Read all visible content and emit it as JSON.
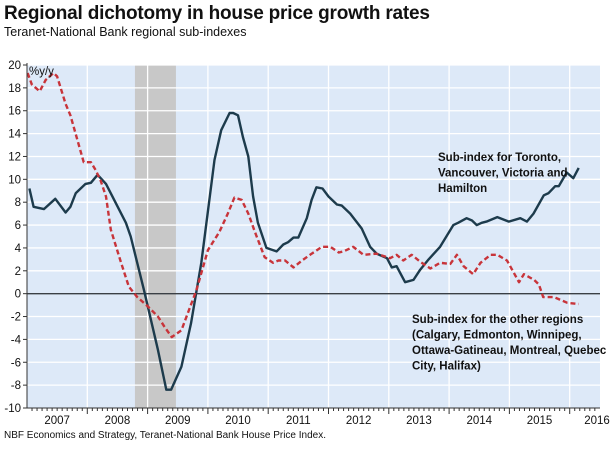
{
  "chart_data": {
    "type": "line",
    "title": "Regional dichotomy in house price growth rates",
    "subtitle": "Teranet-National Bank regional sub-indexes",
    "ylabel": "%y/y",
    "xlabel": "",
    "source": "NBF Economics and Strategy, Teranet-National Bank House Price Index.",
    "ylim": [
      -10,
      20
    ],
    "yticks": [
      20,
      18,
      16,
      14,
      12,
      10,
      8,
      6,
      4,
      2,
      0,
      -2,
      -4,
      -6,
      -8,
      -10
    ],
    "xlim": [
      2007.0,
      2016.5
    ],
    "xticks": [
      "2007",
      "2008",
      "2009",
      "2010",
      "2011",
      "2012",
      "2013",
      "2014",
      "2015",
      "2016"
    ],
    "grid": true,
    "background_color": "#dde9f8",
    "recession_shading": {
      "start": 2008.79,
      "end": 2009.47,
      "color": "#c8c8c8"
    },
    "series": [
      {
        "name": "Sub-index for Toronto, Vancouver, Victoria and Hamilton",
        "label_lines": [
          "Sub-index for Toronto,",
          "Vancouver, Victoria and",
          "Hamilton"
        ],
        "color": "#1d3b4c",
        "style": "solid",
        "points": [
          [
            2007.04,
            9.2
          ],
          [
            2007.11,
            7.6
          ],
          [
            2007.28,
            7.4
          ],
          [
            2007.47,
            8.3
          ],
          [
            2007.64,
            7.1
          ],
          [
            2007.72,
            7.6
          ],
          [
            2007.81,
            8.8
          ],
          [
            2007.97,
            9.6
          ],
          [
            2008.06,
            9.7
          ],
          [
            2008.17,
            10.4
          ],
          [
            2008.31,
            9.6
          ],
          [
            2008.64,
            6.2
          ],
          [
            2008.72,
            5.0
          ],
          [
            2008.94,
            0.3
          ],
          [
            2009.17,
            -4.9
          ],
          [
            2009.31,
            -8.4
          ],
          [
            2009.39,
            -8.4
          ],
          [
            2009.56,
            -6.4
          ],
          [
            2009.72,
            -2.6
          ],
          [
            2009.89,
            2.7
          ],
          [
            2010.11,
            11.7
          ],
          [
            2010.22,
            14.3
          ],
          [
            2010.36,
            15.8
          ],
          [
            2010.42,
            15.8
          ],
          [
            2010.5,
            15.6
          ],
          [
            2010.58,
            13.7
          ],
          [
            2010.67,
            12.0
          ],
          [
            2010.75,
            8.5
          ],
          [
            2010.83,
            6.2
          ],
          [
            2010.97,
            4.0
          ],
          [
            2011.14,
            3.7
          ],
          [
            2011.25,
            4.3
          ],
          [
            2011.33,
            4.5
          ],
          [
            2011.42,
            4.9
          ],
          [
            2011.5,
            4.9
          ],
          [
            2011.64,
            6.6
          ],
          [
            2011.72,
            8.2
          ],
          [
            2011.8,
            9.3
          ],
          [
            2011.9,
            9.2
          ],
          [
            2012.0,
            8.5
          ],
          [
            2012.14,
            7.8
          ],
          [
            2012.22,
            7.7
          ],
          [
            2012.36,
            7.0
          ],
          [
            2012.55,
            5.7
          ],
          [
            2012.69,
            4.1
          ],
          [
            2012.8,
            3.5
          ],
          [
            2012.97,
            3.1
          ],
          [
            2013.05,
            2.3
          ],
          [
            2013.13,
            2.4
          ],
          [
            2013.27,
            1.0
          ],
          [
            2013.41,
            1.2
          ],
          [
            2013.52,
            2.1
          ],
          [
            2013.66,
            3.0
          ],
          [
            2013.85,
            4.1
          ],
          [
            2014.07,
            6.0
          ],
          [
            2014.15,
            6.2
          ],
          [
            2014.29,
            6.6
          ],
          [
            2014.38,
            6.4
          ],
          [
            2014.46,
            6.0
          ],
          [
            2014.54,
            6.2
          ],
          [
            2014.62,
            6.3
          ],
          [
            2014.8,
            6.7
          ],
          [
            2014.99,
            6.3
          ],
          [
            2015.18,
            6.6
          ],
          [
            2015.29,
            6.3
          ],
          [
            2015.4,
            7.0
          ],
          [
            2015.57,
            8.6
          ],
          [
            2015.65,
            8.8
          ],
          [
            2015.76,
            9.4
          ],
          [
            2015.82,
            9.4
          ],
          [
            2015.95,
            10.6
          ],
          [
            2016.06,
            10.1
          ],
          [
            2016.15,
            11.0
          ]
        ]
      },
      {
        "name": "Sub-index for the other regions (Calgary, Edmonton, Winnipeg, Ottawa-Gatineau, Montreal, Quebec City, Halifax)",
        "label_lines": [
          "Sub-index for the other regions",
          "(Calgary, Edmonton, Winnipeg,",
          "Ottawa-Gatineau, Montreal, Quebec",
          "City, Halifax)"
        ],
        "color": "#c8343a",
        "style": "dashed",
        "points": [
          [
            2007.01,
            19.3
          ],
          [
            2007.08,
            18.3
          ],
          [
            2007.21,
            17.7
          ],
          [
            2007.31,
            18.7
          ],
          [
            2007.44,
            19.3
          ],
          [
            2007.5,
            19.0
          ],
          [
            2007.64,
            16.6
          ],
          [
            2007.72,
            15.6
          ],
          [
            2007.94,
            11.5
          ],
          [
            2008.06,
            11.5
          ],
          [
            2008.14,
            10.8
          ],
          [
            2008.22,
            9.9
          ],
          [
            2008.31,
            8.5
          ],
          [
            2008.39,
            5.6
          ],
          [
            2008.56,
            2.7
          ],
          [
            2008.69,
            0.6
          ],
          [
            2008.83,
            -0.3
          ],
          [
            2009.0,
            -1.1
          ],
          [
            2009.17,
            -2.0
          ],
          [
            2009.28,
            -2.9
          ],
          [
            2009.4,
            -3.8
          ],
          [
            2009.56,
            -3.2
          ],
          [
            2009.81,
            0.3
          ],
          [
            2010.0,
            3.8
          ],
          [
            2010.19,
            5.4
          ],
          [
            2010.33,
            7.0
          ],
          [
            2010.44,
            8.4
          ],
          [
            2010.56,
            8.2
          ],
          [
            2010.67,
            7.0
          ],
          [
            2010.78,
            5.4
          ],
          [
            2010.94,
            3.2
          ],
          [
            2011.08,
            2.7
          ],
          [
            2011.17,
            2.9
          ],
          [
            2011.28,
            2.9
          ],
          [
            2011.42,
            2.3
          ],
          [
            2011.56,
            2.9
          ],
          [
            2011.72,
            3.5
          ],
          [
            2011.78,
            3.7
          ],
          [
            2011.89,
            4.1
          ],
          [
            2012.03,
            4.1
          ],
          [
            2012.17,
            3.6
          ],
          [
            2012.25,
            3.7
          ],
          [
            2012.41,
            4.1
          ],
          [
            2012.58,
            3.4
          ],
          [
            2012.8,
            3.5
          ],
          [
            2013.02,
            3.1
          ],
          [
            2013.13,
            3.4
          ],
          [
            2013.24,
            2.9
          ],
          [
            2013.38,
            3.4
          ],
          [
            2013.52,
            2.8
          ],
          [
            2013.69,
            2.2
          ],
          [
            2013.85,
            2.7
          ],
          [
            2014.02,
            2.6
          ],
          [
            2014.13,
            3.4
          ],
          [
            2014.24,
            2.4
          ],
          [
            2014.4,
            1.7
          ],
          [
            2014.52,
            2.7
          ],
          [
            2014.69,
            3.4
          ],
          [
            2014.8,
            3.4
          ],
          [
            2014.96,
            2.9
          ],
          [
            2015.16,
            1.0
          ],
          [
            2015.24,
            1.7
          ],
          [
            2015.41,
            1.2
          ],
          [
            2015.49,
            0.8
          ],
          [
            2015.56,
            -0.3
          ],
          [
            2015.74,
            -0.3
          ],
          [
            2015.96,
            -0.8
          ],
          [
            2016.15,
            -0.9
          ]
        ]
      }
    ]
  }
}
